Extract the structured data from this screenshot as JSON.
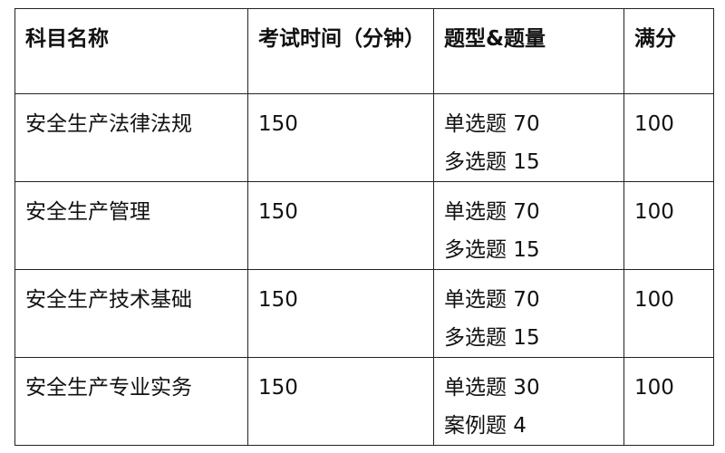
{
  "table": {
    "headers": [
      "科目名称",
      "考试时间（分钟）",
      "题型&题量",
      "满分"
    ],
    "rows": [
      {
        "subject": "安全生产法律法规",
        "time": "150",
        "types": [
          "单选题 70",
          "多选题 15"
        ],
        "score": "100"
      },
      {
        "subject": "安全生产管理",
        "time": "150",
        "types": [
          "单选题 70",
          "多选题 15"
        ],
        "score": "100"
      },
      {
        "subject": "安全生产技术基础",
        "time": "150",
        "types": [
          "单选题 70",
          "多选题 15"
        ],
        "score": "100"
      },
      {
        "subject": "安全生产专业实务",
        "time": "150",
        "types": [
          "单选题 30",
          "案例题 4"
        ],
        "score": "100"
      }
    ]
  }
}
